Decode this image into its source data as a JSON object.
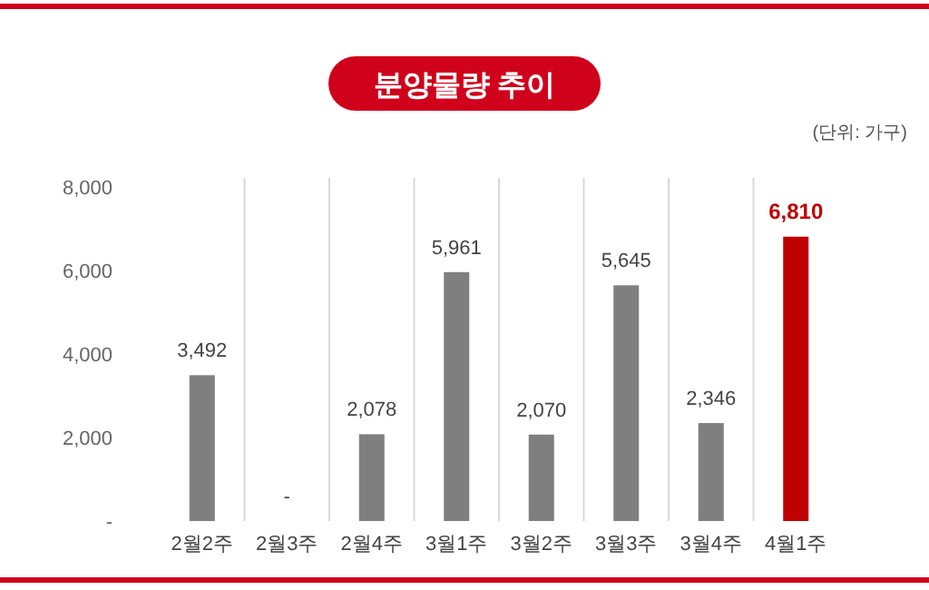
{
  "chart_data": {
    "type": "bar",
    "title": "분양물량 추이",
    "annotations": [
      "(단위: 가구)"
    ],
    "categories": [
      "2월2주",
      "2월3주",
      "2월4주",
      "3월1주",
      "3월2주",
      "3월3주",
      "3월4주",
      "4월1주"
    ],
    "values": [
      3492,
      0,
      2078,
      5961,
      2070,
      5645,
      2346,
      6810
    ],
    "colors": [
      "#7f7f7f",
      "#7f7f7f",
      "#7f7f7f",
      "#7f7f7f",
      "#7f7f7f",
      "#7f7f7f",
      "#7f7f7f",
      "#c00000"
    ],
    "value_labels": [
      "3,492",
      "-",
      "2,078",
      "5,961",
      "2,070",
      "5,645",
      "2,346",
      "6,810"
    ],
    "ylim": [
      0,
      8000
    ],
    "yticks": [
      {
        "value": 0,
        "label": "-"
      },
      {
        "value": 2000,
        "label": "2,000"
      },
      {
        "value": 4000,
        "label": "4,000"
      },
      {
        "value": 6000,
        "label": "6,000"
      },
      {
        "value": 8000,
        "label": "8,000"
      }
    ],
    "grid": "x"
  }
}
